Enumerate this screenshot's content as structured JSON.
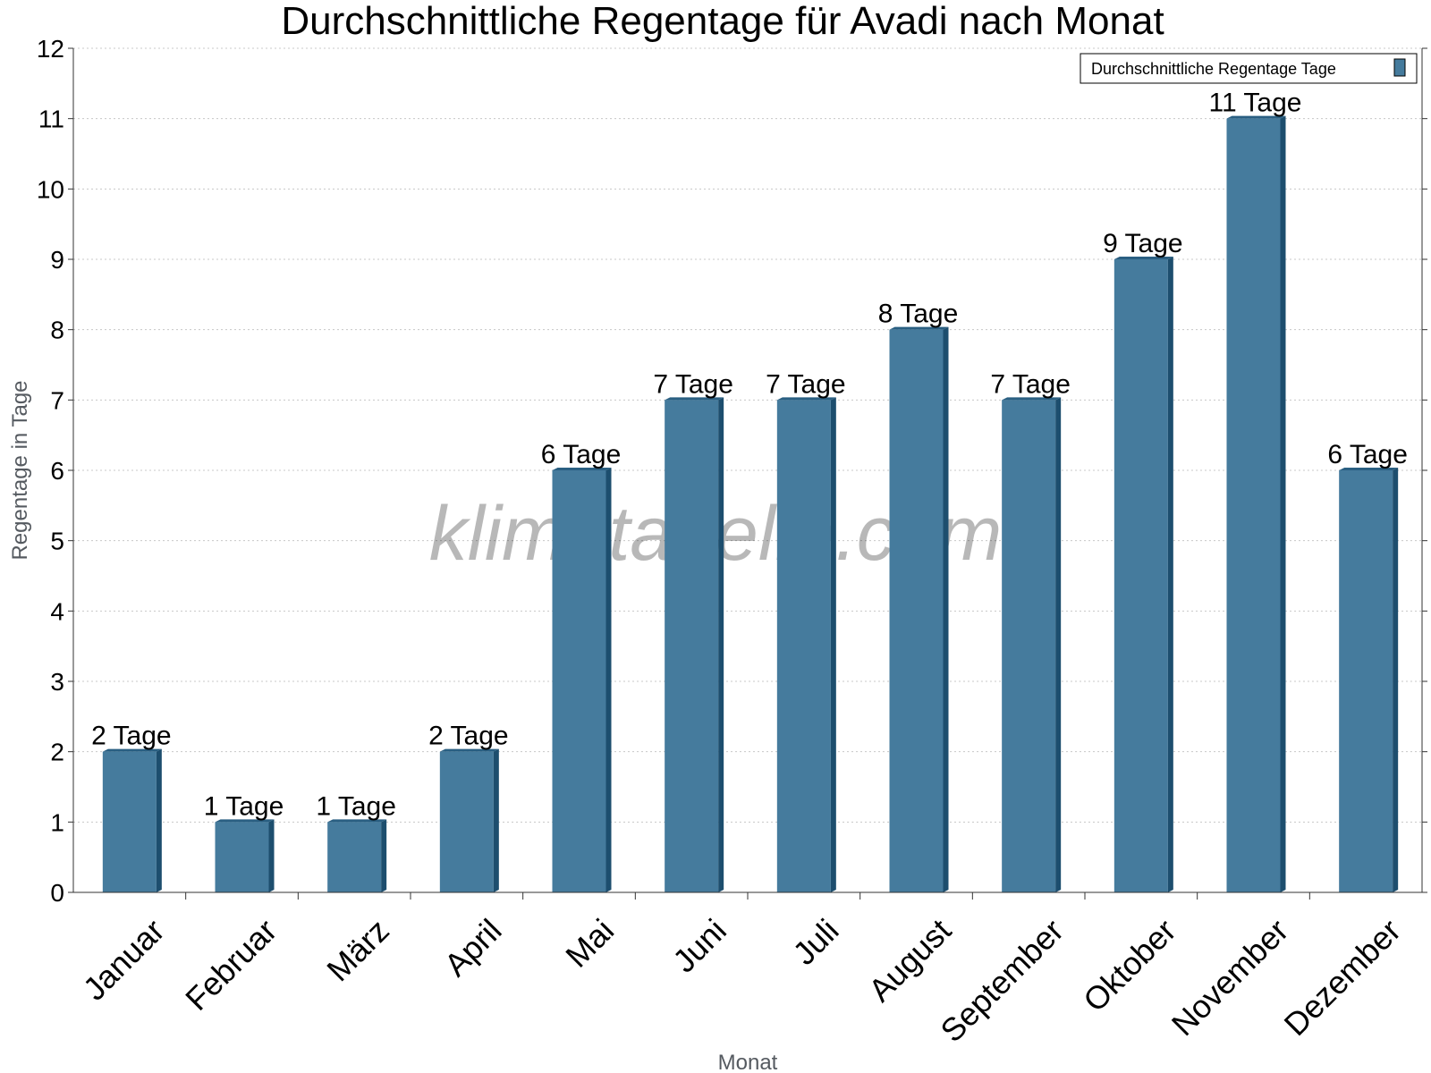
{
  "watermark": "klimatabelle.com",
  "colors": {
    "bar_front": "#457b9d",
    "bar_side": "#1d4e6e",
    "bar_top": "#2a5f82",
    "grid": "#c8c8c8",
    "axis": "#333333"
  },
  "chart_data": {
    "type": "bar",
    "title": "Durchschnittliche Regentage für Avadi nach Monat",
    "xlabel": "Monat",
    "ylabel": "Regentage in Tage",
    "categories": [
      "Januar",
      "Februar",
      "März",
      "April",
      "Mai",
      "Juni",
      "Juli",
      "August",
      "September",
      "Oktober",
      "November",
      "Dezember"
    ],
    "series": [
      {
        "name": "Durchschnittliche Regentage Tage",
        "values": [
          2,
          1,
          1,
          2,
          6,
          7,
          7,
          8,
          7,
          9,
          11,
          6
        ],
        "labels": [
          "2 Tage",
          "1 Tage",
          "1 Tage",
          "2 Tage",
          "6 Tage",
          "7 Tage",
          "7 Tage",
          "8 Tage",
          "7 Tage",
          "9 Tage",
          "11 Tage",
          "6 Tage"
        ]
      }
    ],
    "ylim": [
      0,
      12
    ],
    "yticks": [
      0,
      1,
      2,
      3,
      4,
      5,
      6,
      7,
      8,
      9,
      10,
      11,
      12
    ],
    "grid": true,
    "legend": "top-right"
  }
}
